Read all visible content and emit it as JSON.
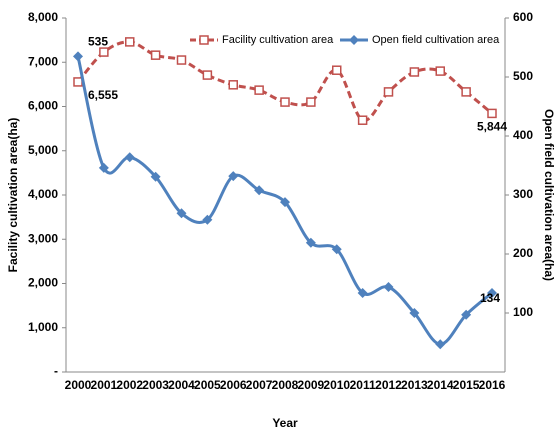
{
  "chart_data": {
    "type": "line",
    "categories": [
      "2000",
      "2001",
      "2002",
      "2003",
      "2004",
      "2005",
      "2006",
      "2007",
      "2008",
      "2009",
      "2010",
      "2011",
      "2012",
      "2013",
      "2014",
      "2015",
      "2016"
    ],
    "x_label": "Year",
    "y_label": "Facility cultivation area(ha)",
    "y2_label": "Open field cultivation area(ha)",
    "ylim": [
      0,
      8000
    ],
    "yticks": [
      {
        "value": 0,
        "label": "-"
      },
      {
        "value": 1000,
        "label": "1,000"
      },
      {
        "value": 2000,
        "label": "2,000"
      },
      {
        "value": 3000,
        "label": "3,000"
      },
      {
        "value": 4000,
        "label": "4,000"
      },
      {
        "value": 5000,
        "label": "5,000"
      },
      {
        "value": 6000,
        "label": "6,000"
      },
      {
        "value": 7000,
        "label": "7,000"
      },
      {
        "value": 8000,
        "label": "8,000"
      }
    ],
    "y2lim": [
      0,
      600
    ],
    "y2ticks": [
      100,
      200,
      300,
      400,
      500,
      600
    ],
    "legend": "top",
    "series": [
      {
        "name": "Facility cultivation area",
        "color": "#c0504d",
        "marker": "square",
        "dashed": true,
        "values": [
          6555,
          7230,
          7460,
          7160,
          7050,
          6710,
          6490,
          6370,
          6100,
          6100,
          6820,
          5690,
          6330,
          6780,
          6800,
          6330,
          5844
        ],
        "value_labels": [
          "6,555",
          null,
          null,
          null,
          null,
          null,
          null,
          null,
          null,
          null,
          null,
          null,
          null,
          null,
          null,
          null,
          "5,844"
        ]
      },
      {
        "name": "Open field cultivation area",
        "color": "#4f81bd",
        "marker": "diamond",
        "dashed": false,
        "axis": "y2",
        "values": [
          535,
          346,
          364,
          331,
          269,
          258,
          332,
          308,
          288,
          219,
          208,
          134,
          144,
          100,
          47,
          97,
          134
        ],
        "value_labels": [
          "535",
          null,
          null,
          null,
          null,
          null,
          null,
          null,
          null,
          null,
          null,
          null,
          null,
          null,
          null,
          null,
          "134"
        ]
      }
    ]
  }
}
